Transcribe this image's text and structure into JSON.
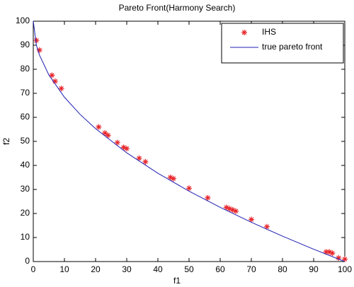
{
  "chart_data": {
    "type": "scatter",
    "title": "Pareto Front(Harmony Search)",
    "x_label": "f1",
    "y_label": "f2",
    "xlim": [
      0,
      100
    ],
    "ylim": [
      0,
      100
    ],
    "xticks": [
      0,
      10,
      20,
      30,
      40,
      50,
      60,
      70,
      80,
      90,
      100
    ],
    "yticks": [
      0,
      10,
      20,
      30,
      40,
      50,
      60,
      70,
      80,
      90,
      100
    ],
    "grid": false,
    "legend": "upper-right",
    "series": [
      {
        "name": "IHS",
        "color": "#e8262b",
        "style": "markers",
        "x": [
          1,
          2,
          6,
          7,
          9,
          21,
          23,
          24,
          27,
          29,
          30,
          34,
          36,
          44,
          45,
          50,
          56,
          62,
          63,
          64,
          65,
          70,
          75,
          94,
          95,
          96,
          98,
          100
        ],
        "values": [
          92,
          88,
          77.5,
          75,
          72,
          56,
          53.5,
          52.5,
          49.5,
          47.5,
          47,
          43,
          41.5,
          35,
          34.5,
          30.5,
          26.5,
          22.5,
          22,
          21.5,
          21,
          17.5,
          14.5,
          4,
          4,
          3.5,
          1.5,
          1
        ]
      },
      {
        "name": "true pareto front",
        "color": "#1f1fb4",
        "style": "line",
        "x": [
          0,
          1,
          2,
          5,
          10,
          15,
          20,
          30,
          40,
          50,
          60,
          70,
          80,
          90,
          100
        ],
        "values": [
          100,
          90,
          85.86,
          77.64,
          68.38,
          61.27,
          55.28,
          45.23,
          36.75,
          29.29,
          22.54,
          16.33,
          10.56,
          5.13,
          0
        ]
      }
    ]
  }
}
